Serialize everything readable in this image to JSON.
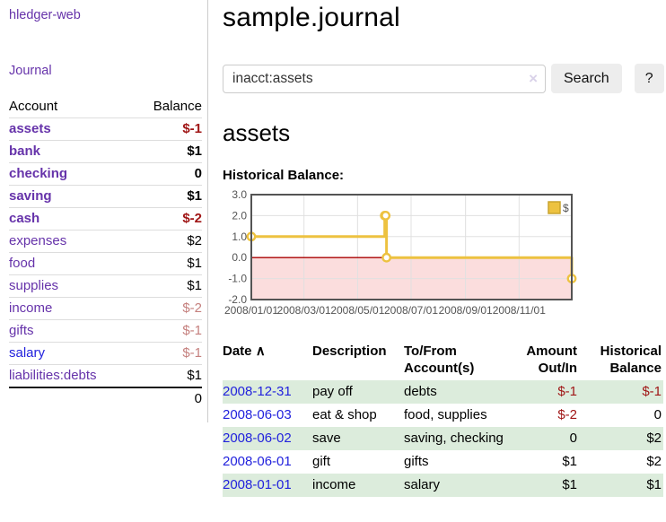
{
  "app": {
    "title": "hledger-web"
  },
  "sidebar": {
    "journal_link": "Journal",
    "accounts_table": {
      "headers": {
        "account": "Account",
        "balance": "Balance"
      },
      "rows": [
        {
          "account": "assets",
          "balance": "$-1"
        },
        {
          "account": "bank",
          "balance": "$1"
        },
        {
          "account": "checking",
          "balance": "0"
        },
        {
          "account": "saving",
          "balance": "$1"
        },
        {
          "account": "cash",
          "balance": "$-2"
        },
        {
          "account": "expenses",
          "balance": "$2"
        },
        {
          "account": "food",
          "balance": "$1"
        },
        {
          "account": "supplies",
          "balance": "$1"
        },
        {
          "account": "income",
          "balance": "$-2"
        },
        {
          "account": "gifts",
          "balance": "$-1"
        },
        {
          "account": "salary",
          "balance": "$-1"
        },
        {
          "account": "liabilities:debts",
          "balance": "$1"
        }
      ],
      "total": "0"
    }
  },
  "main": {
    "title": "sample.journal",
    "search": {
      "value": "inacct:assets",
      "clear_icon": "×",
      "search_button": "Search",
      "help_button": "?"
    },
    "account_heading": "assets",
    "chart_label": "Historical Balance:"
  },
  "chart_data": {
    "type": "line",
    "style": "step",
    "title": "Historical Balance:",
    "series": [
      {
        "name": "$",
        "color": "#edc240",
        "points": [
          [
            "2008-01-01",
            1
          ],
          [
            "2008-06-01",
            2
          ],
          [
            "2008-06-02",
            2
          ],
          [
            "2008-06-03",
            0
          ],
          [
            "2008-12-31",
            -1
          ]
        ]
      }
    ],
    "xrange": [
      "2008-01-01",
      "2008-12-31"
    ],
    "ylim": [
      -2.0,
      3.0
    ],
    "yticks": [
      3.0,
      2.0,
      1.0,
      0.0,
      -1.0,
      -2.0
    ],
    "xticks": [
      "2008/01/01",
      "2008/03/01",
      "2008/05/01",
      "2008/07/01",
      "2008/09/01",
      "2008/11/01"
    ],
    "grid": true,
    "legend_position": "top-right",
    "negative_region_fill": "#fbdddd",
    "zero_line_color": "#aa0000"
  },
  "register": {
    "headers": {
      "date": "Date",
      "sort_indicator": "∧",
      "description": "Description",
      "account": "To/From Account(s)",
      "amount": "Amount Out/In",
      "historical": "Historical Balance"
    },
    "rows": [
      {
        "date": "2008-12-31",
        "description": "pay off",
        "account": "debts",
        "amount": "$-1",
        "historical": "$-1"
      },
      {
        "date": "2008-06-03",
        "description": "eat & shop",
        "account": "food, supplies",
        "amount": "$-2",
        "historical": "0"
      },
      {
        "date": "2008-06-02",
        "description": "save",
        "account": "saving, checking",
        "amount": "0",
        "historical": "$2"
      },
      {
        "date": "2008-06-01",
        "description": "gift",
        "account": "gifts",
        "amount": "$1",
        "historical": "$2"
      },
      {
        "date": "2008-01-01",
        "description": "income",
        "account": "salary",
        "amount": "$1",
        "historical": "$1"
      }
    ]
  },
  "colors": {
    "accent_purple": "#6633aa",
    "link_blue": "#2222dd",
    "negative_strong": "#a01616",
    "negative_faded": "#c5807e",
    "row_green": "#dcecdc",
    "chart_line": "#edc240",
    "chart_negative_region": "#fbdddd",
    "chart_zero_line": "#aa0000"
  }
}
